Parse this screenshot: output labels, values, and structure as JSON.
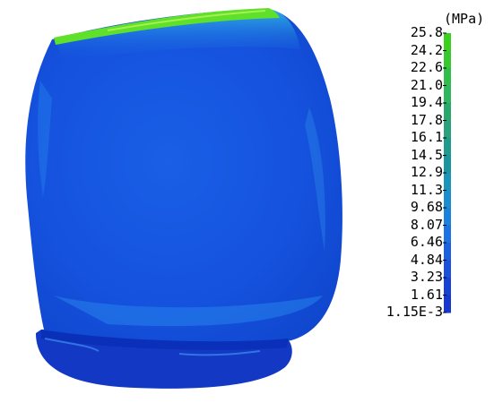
{
  "legend": {
    "unit": "(MPa)",
    "values": [
      "25.8",
      "24.2",
      "22.6",
      "21.0",
      "19.4",
      "17.8",
      "16.1",
      "14.5",
      "12.9",
      "11.3",
      "9.68",
      "8.07",
      "6.46",
      "4.84",
      "3.23",
      "1.61",
      "1.15E-3"
    ],
    "colors": [
      "#3cd01e",
      "#38c830",
      "#30bd4a",
      "#2eb75c",
      "#2aa86c",
      "#2aa07c",
      "#1f9a8c",
      "#1a95a0",
      "#1a94b8",
      "#1a8ecc",
      "#1d82dc",
      "#1c72e2",
      "#1a60e0",
      "#1a50dc",
      "#1742d6",
      "#1738d0",
      "#1a2ad0"
    ]
  },
  "colors": {
    "body": "#1556e0",
    "body_dark": "#0d3fc8",
    "top_edge": "#5fe02a",
    "cyan_highlight": "#34c8e8"
  }
}
